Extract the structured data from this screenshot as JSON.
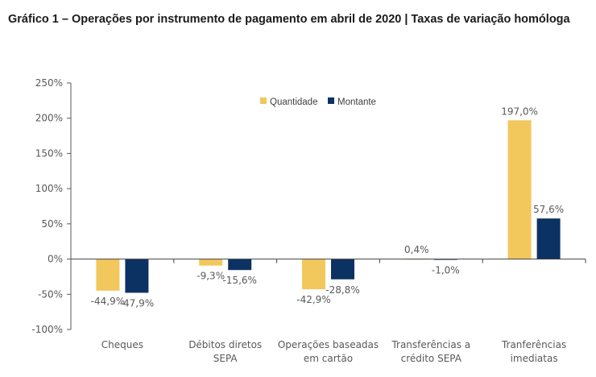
{
  "title": "Gráfico 1 – Operações por instrumento de pagamento em abril de 2020 | Taxas de variação homóloga",
  "chart_data": {
    "type": "bar",
    "title": "Gráfico 1 – Operações por instrumento de pagamento em abril de 2020 | Taxas de variação homóloga",
    "xlabel": "",
    "ylabel": "",
    "ylim": [
      -100,
      250
    ],
    "yticks": [
      250,
      200,
      150,
      100,
      50,
      0,
      -50,
      -100
    ],
    "ytick_labels": [
      "250%",
      "200%",
      "150%",
      "100%",
      "50%",
      "0%",
      "-50%",
      "-100%"
    ],
    "grid": false,
    "legend_position": "top-center",
    "categories": [
      [
        "Cheques"
      ],
      [
        "Débitos diretos",
        "SEPA"
      ],
      [
        "Operações baseadas",
        "em cartão"
      ],
      [
        "Transferências a",
        "crédito SEPA"
      ],
      [
        "Tranferências",
        "imediatas"
      ]
    ],
    "series": [
      {
        "name": "Quantidade",
        "color": "#F2C75C",
        "values": [
          -44.9,
          -9.3,
          -42.9,
          0.4,
          197.0
        ],
        "labels": [
          "-44,9%",
          "-9,3%",
          "-42,9%",
          "0,4%",
          "197,0%"
        ]
      },
      {
        "name": "Montante",
        "color": "#0C3263",
        "values": [
          -47.9,
          -15.6,
          -28.8,
          -1.0,
          57.6
        ],
        "labels": [
          "-47,9%",
          "-15,6%",
          "-28,8%",
          "-1,0%",
          "57,6%"
        ]
      }
    ]
  }
}
